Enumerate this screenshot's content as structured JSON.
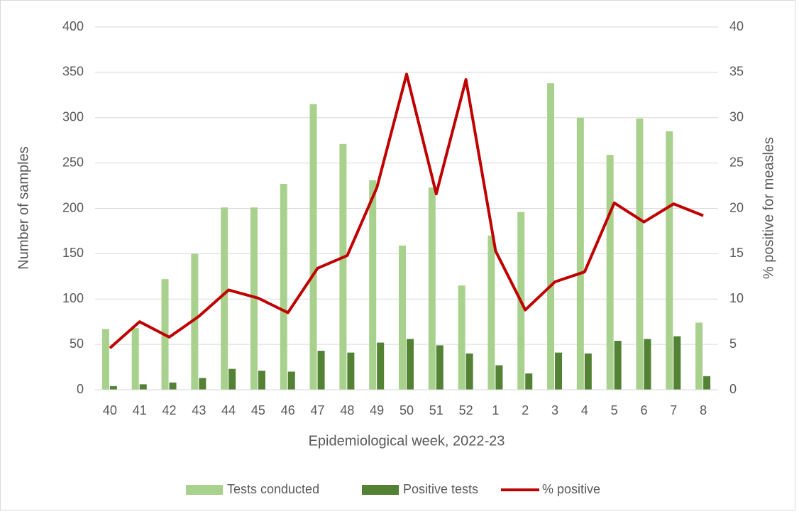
{
  "chart_data": {
    "type": "combo",
    "xlabel": "Epidemiological week, 2022-23",
    "ylabel": "Number of samples",
    "y2label": "% positive for measles",
    "categories": [
      "40",
      "41",
      "42",
      "43",
      "44",
      "45",
      "46",
      "47",
      "48",
      "49",
      "50",
      "51",
      "52",
      "1",
      "2",
      "3",
      "4",
      "5",
      "6",
      "7",
      "8"
    ],
    "ylim": [
      0,
      400
    ],
    "yticks": [
      0,
      50,
      100,
      150,
      200,
      250,
      300,
      350,
      400
    ],
    "y2lim": [
      0,
      40
    ],
    "y2ticks": [
      0,
      5,
      10,
      15,
      20,
      25,
      30,
      35,
      40
    ],
    "grid": true,
    "legend": "bottom",
    "series": [
      {
        "name": "Tests conducted",
        "type": "bar",
        "color": "#a9d18e",
        "values": [
          67,
          68,
          122,
          150,
          201,
          201,
          227,
          315,
          271,
          231,
          159,
          223,
          115,
          170,
          196,
          338,
          300,
          259,
          299,
          285,
          74
        ]
      },
      {
        "name": "Positive tests",
        "type": "bar",
        "color": "#548235",
        "values": [
          4,
          6,
          8,
          13,
          23,
          21,
          20,
          43,
          41,
          52,
          56,
          49,
          40,
          27,
          18,
          41,
          40,
          54,
          56,
          59,
          15
        ]
      },
      {
        "name": "% positive",
        "type": "line",
        "color": "#c00000",
        "axis": "y2",
        "values": [
          4.6,
          7.5,
          5.8,
          8.1,
          11.0,
          10.1,
          8.5,
          13.4,
          14.8,
          22.3,
          34.8,
          21.6,
          34.2,
          15.3,
          8.8,
          11.9,
          13.0,
          20.6,
          18.5,
          20.5,
          19.2
        ]
      }
    ]
  }
}
